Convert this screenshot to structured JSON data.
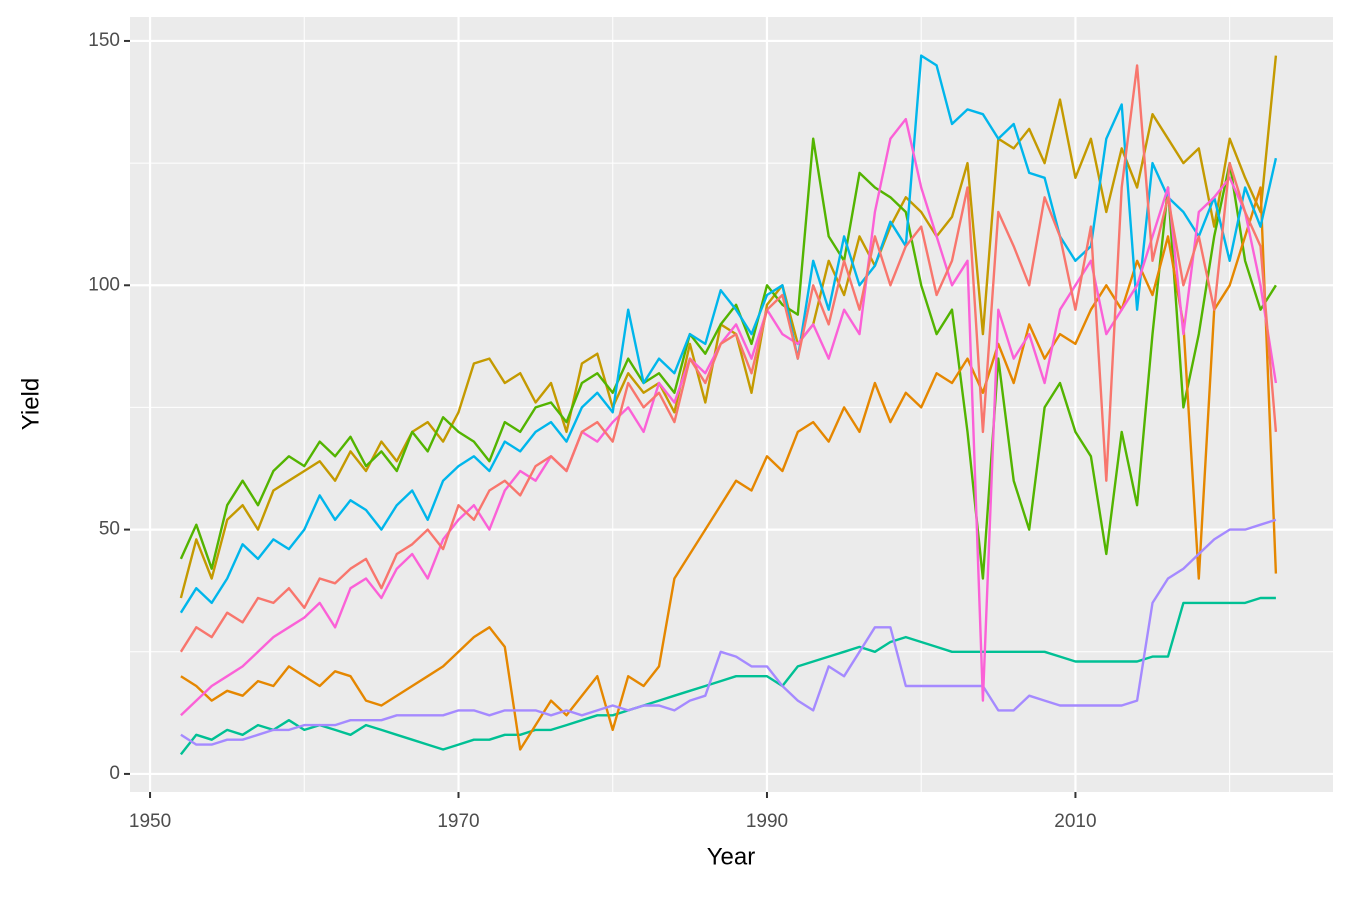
{
  "chart_data": {
    "type": "line",
    "x_label": "Year",
    "y_label": "Yield",
    "x": [
      1952,
      1953,
      1954,
      1955,
      1956,
      1957,
      1958,
      1959,
      1960,
      1961,
      1962,
      1963,
      1964,
      1965,
      1966,
      1967,
      1968,
      1969,
      1970,
      1971,
      1972,
      1973,
      1974,
      1975,
      1976,
      1977,
      1978,
      1979,
      1980,
      1981,
      1982,
      1983,
      1984,
      1985,
      1986,
      1987,
      1988,
      1989,
      1990,
      1991,
      1992,
      1993,
      1994,
      1995,
      1996,
      1997,
      1998,
      1999,
      2000,
      2001,
      2002,
      2003,
      2004,
      2005,
      2006,
      2007,
      2008,
      2009,
      2010,
      2011,
      2012,
      2013,
      2014,
      2015,
      2016,
      2017,
      2018,
      2019,
      2020,
      2021,
      2022,
      2023
    ],
    "series": [
      {
        "color": "#C49A00",
        "values": [
          36,
          48,
          40,
          52,
          55,
          50,
          58,
          60,
          62,
          64,
          60,
          66,
          62,
          68,
          64,
          70,
          72,
          68,
          74,
          84,
          85,
          80,
          82,
          76,
          80,
          70,
          84,
          86,
          75,
          82,
          78,
          80,
          74,
          88,
          76,
          92,
          90,
          78,
          96,
          100,
          88,
          92,
          105,
          98,
          110,
          104,
          112,
          118,
          115,
          110,
          114,
          125,
          90,
          130,
          128,
          132,
          125,
          138,
          122,
          130,
          115,
          128,
          120,
          135,
          130,
          125,
          128,
          112,
          130,
          122,
          115,
          147
        ]
      },
      {
        "color": "#53B400",
        "values": [
          44,
          51,
          42,
          55,
          60,
          55,
          62,
          65,
          63,
          68,
          65,
          69,
          63,
          66,
          62,
          70,
          66,
          73,
          70,
          68,
          64,
          72,
          70,
          75,
          76,
          72,
          80,
          82,
          78,
          85,
          80,
          82,
          78,
          90,
          86,
          92,
          96,
          88,
          100,
          96,
          94,
          130,
          110,
          105,
          123,
          120,
          118,
          115,
          100,
          90,
          95,
          70,
          40,
          85,
          60,
          50,
          75,
          80,
          70,
          65,
          45,
          70,
          55,
          90,
          120,
          75,
          90,
          110,
          125,
          105,
          95,
          100
        ]
      },
      {
        "color": "#00C094",
        "values": [
          4,
          8,
          7,
          9,
          8,
          10,
          9,
          11,
          9,
          10,
          9,
          8,
          10,
          9,
          8,
          7,
          6,
          5,
          6,
          7,
          7,
          8,
          8,
          9,
          9,
          10,
          11,
          12,
          12,
          13,
          14,
          15,
          16,
          17,
          18,
          19,
          20,
          20,
          20,
          18,
          22,
          23,
          24,
          25,
          26,
          25,
          27,
          28,
          27,
          26,
          25,
          25,
          25,
          25,
          25,
          25,
          25,
          24,
          23,
          23,
          23,
          23,
          23,
          24,
          24,
          35,
          35,
          35,
          35,
          35,
          36,
          36
        ]
      },
      {
        "color": "#E58700",
        "values": [
          20,
          18,
          15,
          17,
          16,
          19,
          18,
          22,
          20,
          18,
          21,
          20,
          15,
          14,
          16,
          18,
          20,
          22,
          25,
          28,
          30,
          26,
          5,
          10,
          15,
          12,
          16,
          20,
          9,
          20,
          18,
          22,
          40,
          45,
          50,
          55,
          60,
          58,
          65,
          62,
          70,
          72,
          68,
          75,
          70,
          80,
          72,
          78,
          75,
          82,
          80,
          85,
          78,
          88,
          80,
          92,
          85,
          90,
          88,
          95,
          100,
          95,
          105,
          98,
          110,
          92,
          40,
          95,
          100,
          110,
          120,
          41
        ]
      },
      {
        "color": "#A58AFF",
        "values": [
          8,
          6,
          6,
          7,
          7,
          8,
          9,
          9,
          10,
          10,
          10,
          11,
          11,
          11,
          12,
          12,
          12,
          12,
          13,
          13,
          12,
          13,
          13,
          13,
          12,
          13,
          12,
          13,
          14,
          13,
          14,
          14,
          13,
          15,
          16,
          25,
          24,
          22,
          22,
          18,
          15,
          13,
          22,
          20,
          25,
          30,
          30,
          18,
          18,
          18,
          18,
          18,
          18,
          13,
          13,
          16,
          15,
          14,
          14,
          14,
          14,
          14,
          15,
          35,
          40,
          42,
          45,
          48,
          50,
          50,
          51,
          52
        ]
      },
      {
        "color": "#00B6EB",
        "values": [
          33,
          38,
          35,
          40,
          47,
          44,
          48,
          46,
          50,
          57,
          52,
          56,
          54,
          50,
          55,
          58,
          52,
          60,
          63,
          65,
          62,
          68,
          66,
          70,
          72,
          68,
          75,
          78,
          74,
          95,
          80,
          85,
          82,
          90,
          88,
          99,
          95,
          90,
          98,
          100,
          85,
          105,
          95,
          110,
          100,
          104,
          113,
          108,
          147,
          145,
          133,
          136,
          135,
          130,
          133,
          123,
          122,
          110,
          105,
          108,
          130,
          137,
          95,
          125,
          118,
          115,
          110,
          118,
          105,
          120,
          112,
          126
        ]
      },
      {
        "color": "#FB61D7",
        "values": [
          12,
          15,
          18,
          20,
          22,
          25,
          28,
          30,
          32,
          35,
          30,
          38,
          40,
          36,
          42,
          45,
          40,
          48,
          52,
          55,
          50,
          58,
          62,
          60,
          65,
          62,
          70,
          68,
          72,
          75,
          70,
          80,
          76,
          85,
          82,
          88,
          92,
          85,
          95,
          90,
          88,
          92,
          85,
          95,
          90,
          115,
          130,
          134,
          120,
          110,
          100,
          105,
          15,
          95,
          85,
          90,
          80,
          95,
          100,
          105,
          90,
          95,
          100,
          110,
          120,
          90,
          115,
          118,
          122,
          115,
          100,
          80
        ]
      },
      {
        "color": "#F8766D",
        "values": [
          25,
          30,
          28,
          33,
          31,
          36,
          35,
          38,
          34,
          40,
          39,
          42,
          44,
          38,
          45,
          47,
          50,
          46,
          55,
          52,
          58,
          60,
          57,
          63,
          65,
          62,
          70,
          72,
          68,
          80,
          75,
          78,
          72,
          85,
          80,
          88,
          90,
          82,
          95,
          98,
          85,
          100,
          92,
          105,
          95,
          110,
          100,
          108,
          112,
          98,
          105,
          120,
          70,
          115,
          108,
          100,
          118,
          110,
          95,
          112,
          60,
          120,
          145,
          105,
          118,
          100,
          110,
          95,
          125,
          115,
          108,
          70
        ]
      }
    ],
    "xlim": [
      1948.7,
      2026.7
    ],
    "xticks": [
      1950,
      1970,
      1990,
      2010
    ],
    "ylim": [
      -3.7,
      154.9
    ],
    "yticks": [
      0,
      50,
      100,
      150
    ],
    "grid": true
  }
}
